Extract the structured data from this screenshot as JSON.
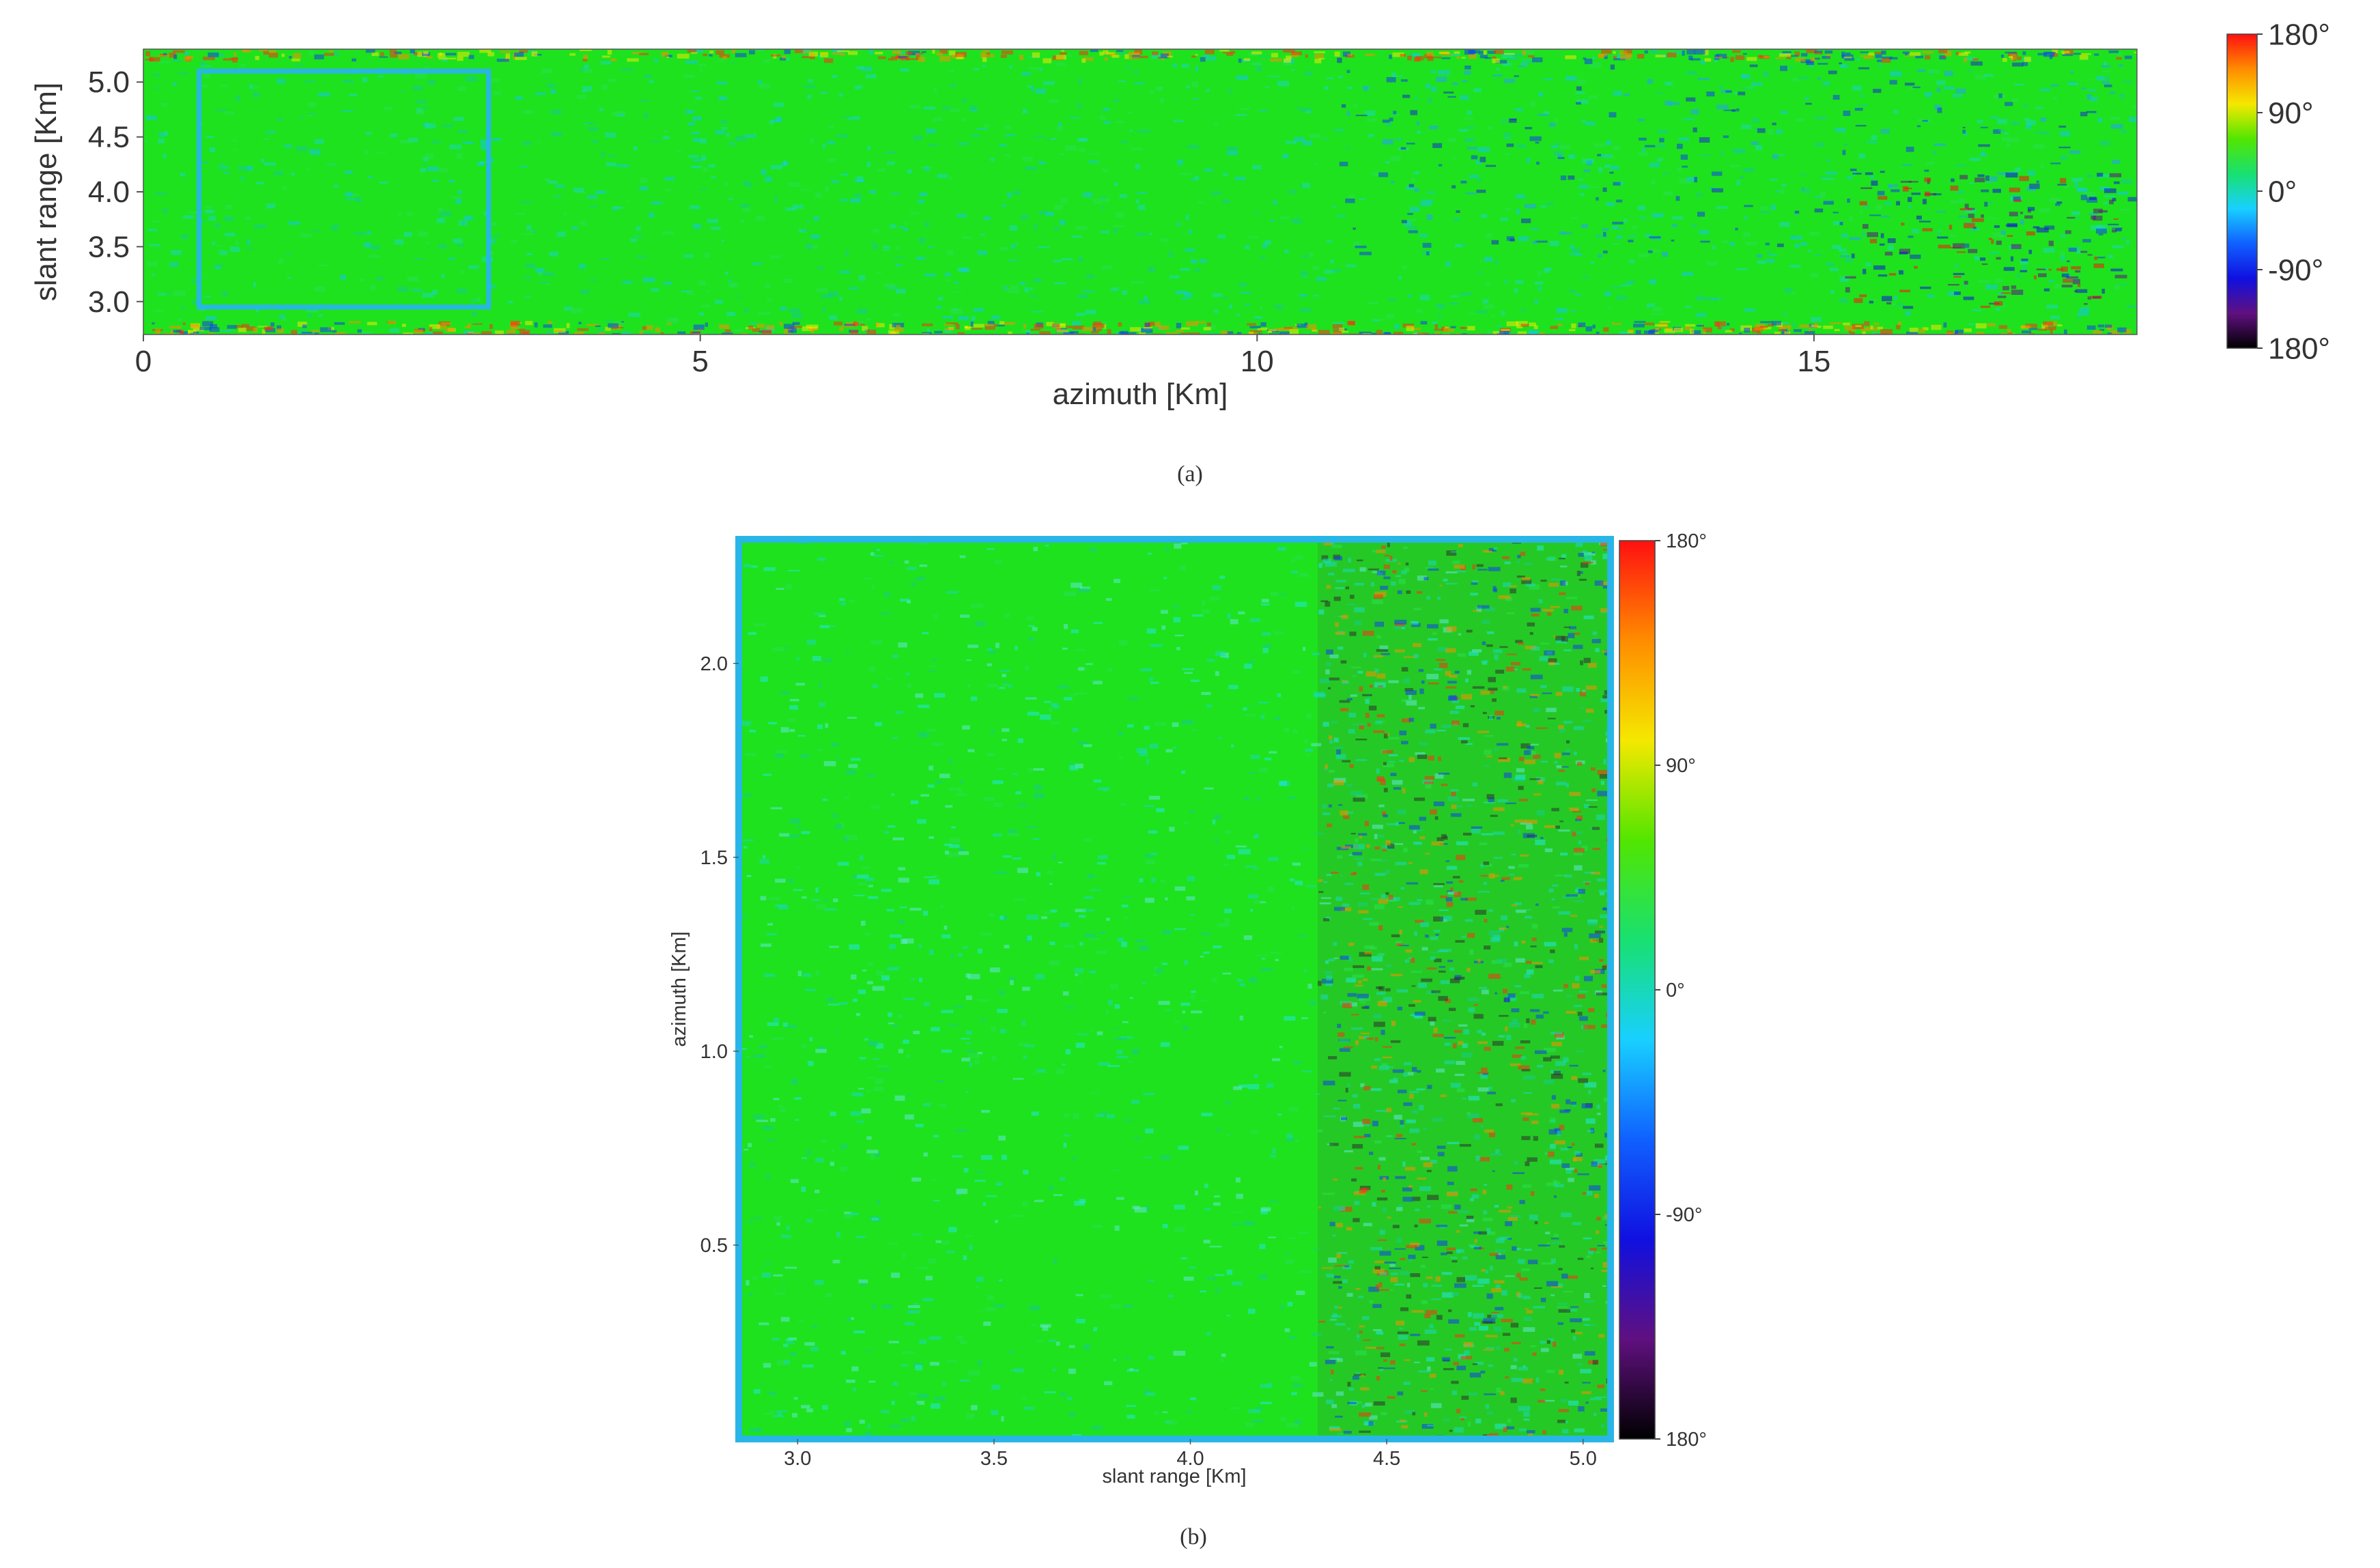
{
  "colors": {
    "base_green": "#1ee21e",
    "highlight_box": "#29b6e6",
    "colorbar_stops": [
      "#ff1010",
      "#ff8c00",
      "#f5e800",
      "#52e600",
      "#18e070",
      "#18d0ff",
      "#1060ff",
      "#1010e0",
      "#601080",
      "#000000"
    ]
  },
  "chart_data": [
    {
      "id": "a",
      "type": "heatmap",
      "caption": "(a)",
      "xlabel": "azimuth [Km]",
      "ylabel": "slant range [Km]",
      "xlim": [
        0,
        17.9
      ],
      "ylim": [
        2.7,
        5.3
      ],
      "xticks": [
        "0",
        "5",
        "10",
        "15"
      ],
      "xtick_values": [
        0,
        5,
        10,
        15
      ],
      "yticks": [
        "3.0",
        "3.5",
        "4.0",
        "4.5",
        "5.0"
      ],
      "ytick_values": [
        3.0,
        3.5,
        4.0,
        4.5,
        5.0
      ],
      "colorbar_ticks": [
        "180°",
        "90°",
        "0°",
        "-90°",
        "180°"
      ],
      "colorbar_values": [
        180,
        90,
        0,
        -90,
        -180
      ],
      "highlight_region": {
        "azimuth": [
          0.5,
          3.1
        ],
        "slant_range": [
          2.95,
          5.1
        ]
      }
    },
    {
      "id": "b",
      "type": "heatmap",
      "caption": "(b)",
      "xlabel": "slant range [Km]",
      "ylabel": "azimuth [Km]",
      "xlim": [
        2.85,
        5.07
      ],
      "ylim": [
        0,
        2.32
      ],
      "xticks": [
        "3.0",
        "3.5",
        "4.0",
        "4.5",
        "5.0"
      ],
      "xtick_values": [
        3.0,
        3.5,
        4.0,
        4.5,
        5.0
      ],
      "yticks": [
        "0.5",
        "1.0",
        "1.5",
        "2.0"
      ],
      "ytick_values": [
        0.5,
        1.0,
        1.5,
        2.0
      ],
      "colorbar_ticks": [
        "180°",
        "90°",
        "0°",
        "-90°",
        "180°"
      ],
      "colorbar_values": [
        180,
        90,
        0,
        -90,
        -180
      ]
    }
  ]
}
